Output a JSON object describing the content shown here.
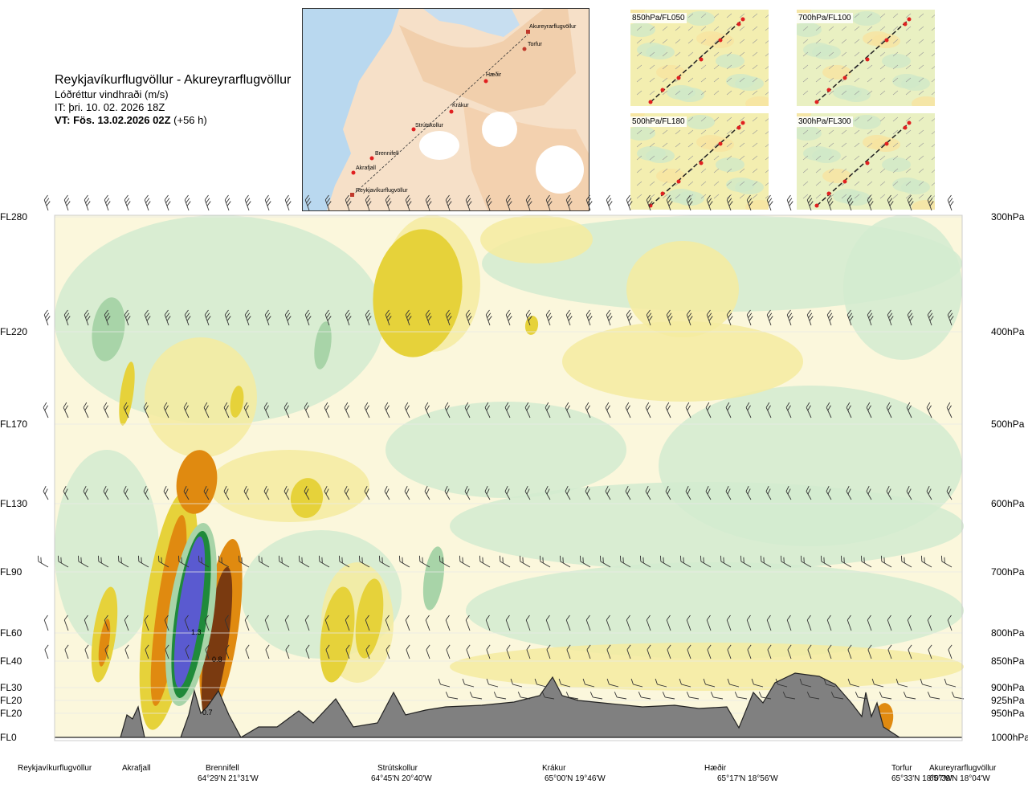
{
  "header": {
    "route": "Reykjavíkurflugvöllur - Akureyrarflugvöllur",
    "variable": "Lóðréttur vindhraði (m/s)",
    "it": "IT: þri. 10. 02. 2026 18Z",
    "vt_bold": "VT: Fös. 13.02.2026 02Z",
    "vt_lead": "(+56 h)"
  },
  "map": {
    "points": [
      "Akureyrarflugvöllur",
      "Torfur",
      "Hæðir",
      "Krákur",
      "Strútskollur",
      "Brennifell",
      "Akrafjall",
      "Reykjavíkurflugvöllur"
    ]
  },
  "minimaps": [
    {
      "label": "850hPa/FL050"
    },
    {
      "label": "700hPa/FL100"
    },
    {
      "label": "500hPa/FL180"
    },
    {
      "label": "300hPa/FL300"
    }
  ],
  "levels": [
    {
      "fl": "FL280",
      "p": "300hPa"
    },
    {
      "fl": "FL220",
      "p": "400hPa"
    },
    {
      "fl": "FL170",
      "p": "500hPa"
    },
    {
      "fl": "FL130",
      "p": "600hPa"
    },
    {
      "fl": "FL90",
      "p": "700hPa"
    },
    {
      "fl": "FL60",
      "p": "800hPa"
    },
    {
      "fl": "FL40",
      "p": "850hPa"
    },
    {
      "fl": "FL30",
      "p": "900hPa"
    },
    {
      "fl": "FL20",
      "p": "925hPa"
    },
    {
      "fl": "FL20",
      "p": "950hPa"
    },
    {
      "fl": "FL0",
      "p": "1000hPa"
    }
  ],
  "locations": [
    {
      "name": "Reykjavíkurflugvöllur",
      "coord": ""
    },
    {
      "name": "Akrafjall",
      "coord": ""
    },
    {
      "name": "Brennifell",
      "coord": "64°29'N 21°31'W"
    },
    {
      "name": "Strútskollur",
      "coord": "64°45'N 20°40'W"
    },
    {
      "name": "Krákur",
      "coord": "65°00'N 19°46'W"
    },
    {
      "name": "Hæðir",
      "coord": "65°17'N 18°56'W"
    },
    {
      "name": "Torfur",
      "coord": "65°33'N 18°07'W"
    },
    {
      "name": "Akureyrarflugvöllur",
      "coord": "65°39'N 18°04'W"
    }
  ],
  "colors": {
    "strong_down": "#7a3a10",
    "down_orange": "#e08a10",
    "down_yellow": "#e6d23a",
    "light_yellow": "#f5eba0",
    "pale": "#fbf7dc",
    "light_green": "#d2ebd0",
    "green": "#a8d4a8",
    "dark_green": "#1f8a3a",
    "strong_up": "#5a5ad0",
    "terrain": "#808080"
  },
  "chart_data": {
    "type": "heatmap",
    "title": "Reykjavíkurflugvöllur - Akureyrarflugvöllur",
    "subtitle": "Lóðréttur vindhraði (m/s)",
    "y_left_ticks": [
      "FL280",
      "FL220",
      "FL170",
      "FL130",
      "FL90",
      "FL60",
      "FL40",
      "FL30",
      "FL20",
      "FL20",
      "FL0"
    ],
    "y_right_ticks": [
      "300hPa",
      "400hPa",
      "500hPa",
      "600hPa",
      "700hPa",
      "800hPa",
      "850hPa",
      "900hPa",
      "925hPa",
      "950hPa",
      "1000hPa"
    ],
    "pressure_levels_hPa": [
      300,
      400,
      500,
      600,
      700,
      800,
      850,
      900,
      925,
      950,
      1000
    ],
    "annotations": [
      {
        "text": "1.3",
        "pressure_hPa": 800
      },
      {
        "text": "0.8",
        "pressure_hPa": 850
      },
      {
        "text": "0.7",
        "pressure_hPa": 960
      }
    ],
    "x_locations": [
      "Reykjavíkurflugvöllur",
      "Akrafjall",
      "Brennifell",
      "Strútskollur",
      "Krákur",
      "Hæðir",
      "Torfur",
      "Akureyrarflugvöllur"
    ]
  }
}
